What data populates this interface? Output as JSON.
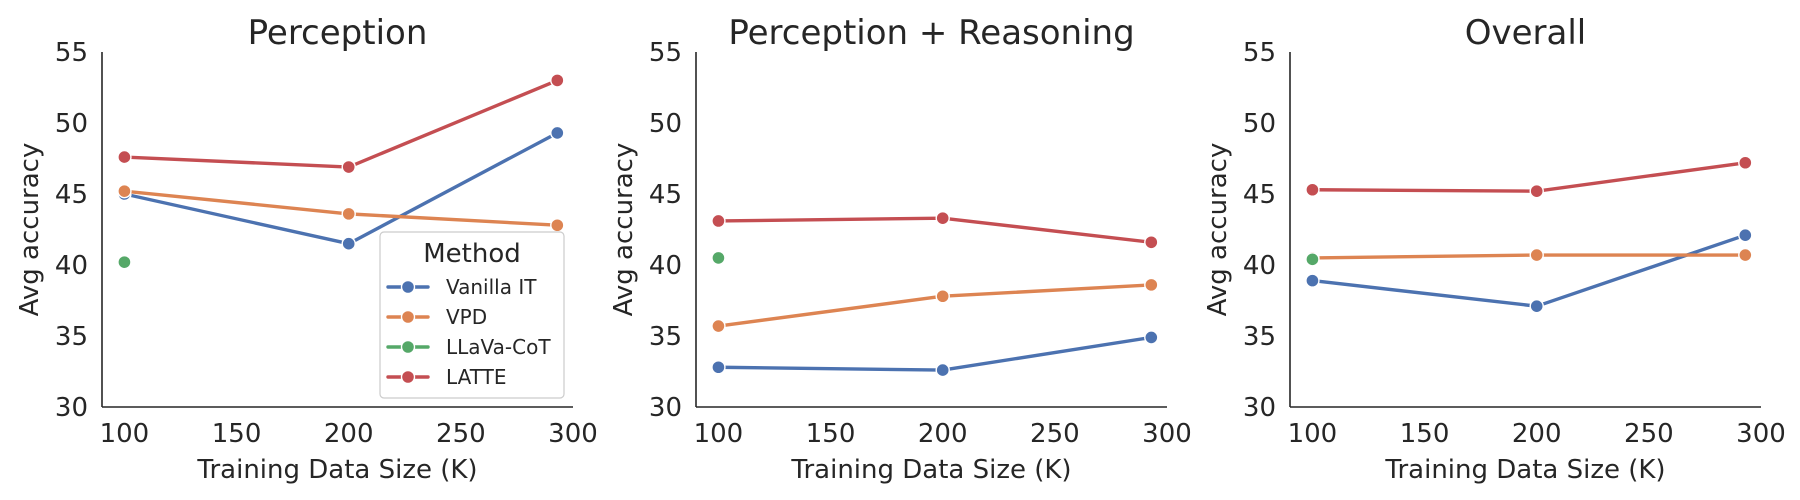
{
  "figure": {
    "panels": [
      "Perception",
      "Perception + Reasoning",
      "Overall"
    ]
  },
  "legend": {
    "title": "Method",
    "entries": [
      "Vanilla IT",
      "VPD",
      "LLaVa-CoT",
      "LATTE"
    ]
  },
  "colors": {
    "Vanilla IT": "#4c72b0",
    "VPD": "#dd8452",
    "LLaVa-CoT": "#55a868",
    "LATTE": "#c44e52"
  },
  "chart_data": [
    {
      "type": "line",
      "title": "Perception",
      "xlabel": "Training Data Size (K)",
      "ylabel": "Avg accuracy",
      "xlim": [
        90,
        300
      ],
      "ylim": [
        30,
        55
      ],
      "xticks": [
        100,
        150,
        200,
        250,
        300
      ],
      "yticks": [
        30,
        35,
        40,
        45,
        50,
        55
      ],
      "grid": false,
      "legend": "lower-right",
      "series": [
        {
          "name": "Vanilla IT",
          "x": [
            100,
            200,
            293
          ],
          "y": [
            45.0,
            41.5,
            49.3
          ]
        },
        {
          "name": "VPD",
          "x": [
            100,
            200,
            293
          ],
          "y": [
            45.2,
            43.6,
            42.8
          ]
        },
        {
          "name": "LLaVa-CoT",
          "x": [
            100
          ],
          "y": [
            40.2
          ]
        },
        {
          "name": "LATTE",
          "x": [
            100,
            200,
            293
          ],
          "y": [
            47.6,
            46.9,
            53.0
          ]
        }
      ]
    },
    {
      "type": "line",
      "title": "Perception + Reasoning",
      "xlabel": "Training Data Size (K)",
      "ylabel": "Avg accuracy",
      "xlim": [
        90,
        300
      ],
      "ylim": [
        30,
        55
      ],
      "xticks": [
        100,
        150,
        200,
        250,
        300
      ],
      "yticks": [
        30,
        35,
        40,
        45,
        50,
        55
      ],
      "grid": false,
      "series": [
        {
          "name": "Vanilla IT",
          "x": [
            100,
            200,
            293
          ],
          "y": [
            32.8,
            32.6,
            34.9
          ]
        },
        {
          "name": "VPD",
          "x": [
            100,
            200,
            293
          ],
          "y": [
            35.7,
            37.8,
            38.6
          ]
        },
        {
          "name": "LLaVa-CoT",
          "x": [
            100
          ],
          "y": [
            40.5
          ]
        },
        {
          "name": "LATTE",
          "x": [
            100,
            200,
            293
          ],
          "y": [
            43.1,
            43.3,
            41.6
          ]
        }
      ]
    },
    {
      "type": "line",
      "title": "Overall",
      "xlabel": "Training Data Size (K)",
      "ylabel": "Avg accuracy",
      "xlim": [
        90,
        300
      ],
      "ylim": [
        30,
        55
      ],
      "xticks": [
        100,
        150,
        200,
        250,
        300
      ],
      "yticks": [
        30,
        35,
        40,
        45,
        50,
        55
      ],
      "grid": false,
      "series": [
        {
          "name": "Vanilla IT",
          "x": [
            100,
            200,
            293
          ],
          "y": [
            38.9,
            37.1,
            42.1
          ]
        },
        {
          "name": "VPD",
          "x": [
            100,
            200,
            293
          ],
          "y": [
            40.5,
            40.7,
            40.7
          ]
        },
        {
          "name": "LLaVa-CoT",
          "x": [
            100
          ],
          "y": [
            40.4
          ]
        },
        {
          "name": "LATTE",
          "x": [
            100,
            200,
            293
          ],
          "y": [
            45.3,
            45.2,
            47.2
          ]
        }
      ]
    }
  ]
}
